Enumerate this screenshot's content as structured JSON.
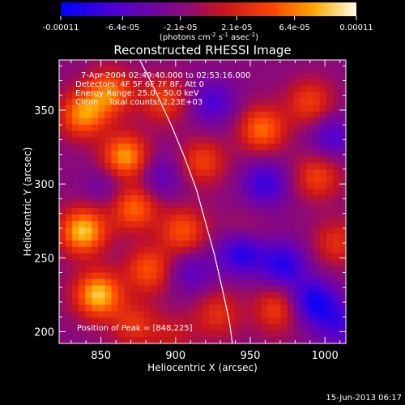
{
  "colorbar": {
    "tick_labels": [
      "-0.00011",
      "-6.4e-05",
      "-2.1e-05",
      "2.1e-05",
      "6.4e-05",
      "0.00011"
    ],
    "tick_values": [
      -0.00011,
      -6.4e-05,
      -2.1e-05,
      2.1e-05,
      6.4e-05,
      0.00011
    ],
    "unit_prefix": "(photons cm",
    "unit_exp1": "-2",
    "unit_mid": " s",
    "unit_exp2": "-1",
    "unit_mid2": " asec",
    "unit_exp3": "-2",
    "unit_suffix": ")"
  },
  "chart_data": {
    "type": "heatmap",
    "title": "Reconstructed RHESSI Image",
    "xlabel": "Heliocentric X (arcsec)",
    "ylabel": "Heliocentric Y (arcsec)",
    "xlim": [
      822,
      1014
    ],
    "ylim": [
      192,
      384
    ],
    "x_ticks": [
      850,
      900,
      950,
      1000
    ],
    "x_tick_labels": [
      "850",
      "900",
      "950",
      "1000"
    ],
    "y_ticks": [
      200,
      250,
      300,
      350
    ],
    "y_tick_labels": [
      "200",
      "250",
      "300",
      "350"
    ],
    "colormap": "rhessi-blue-purple-red-yellow",
    "value_range": [
      -0.00011,
      0.00011
    ],
    "limb_curve": {
      "x": [
        876,
        886,
        897,
        906,
        914,
        920,
        926,
        931,
        936,
        938
      ],
      "y": [
        384,
        364,
        340,
        318,
        296,
        274,
        252,
        230,
        207,
        192
      ]
    },
    "peak": [
      848,
      225
    ],
    "sources": [
      {
        "x": 838,
        "y": 347,
        "v": 9e-05
      },
      {
        "x": 866,
        "y": 318,
        "v": 0.0001
      },
      {
        "x": 838,
        "y": 268,
        "v": 0.00011
      },
      {
        "x": 848,
        "y": 225,
        "v": 0.00011
      },
      {
        "x": 872,
        "y": 284,
        "v": 8e-05
      },
      {
        "x": 892,
        "y": 357,
        "v": 6e-05
      },
      {
        "x": 856,
        "y": 362,
        "v": 8e-05
      },
      {
        "x": 905,
        "y": 268,
        "v": 7e-05
      },
      {
        "x": 882,
        "y": 242,
        "v": 7e-05
      },
      {
        "x": 872,
        "y": 205,
        "v": 5e-05
      },
      {
        "x": 918,
        "y": 315,
        "v": 6e-05
      },
      {
        "x": 958,
        "y": 337,
        "v": 8e-05
      },
      {
        "x": 990,
        "y": 355,
        "v": 6e-05
      },
      {
        "x": 995,
        "y": 305,
        "v": 6e-05
      },
      {
        "x": 1008,
        "y": 260,
        "v": 5e-05
      },
      {
        "x": 968,
        "y": 215,
        "v": 6e-05
      },
      {
        "x": 945,
        "y": 265,
        "v": 4e-05
      },
      {
        "x": 928,
        "y": 212,
        "v": 5e-05
      },
      {
        "x": 898,
        "y": 198,
        "v": 3e-05
      },
      {
        "x": 944,
        "y": 255,
        "v": -9e-05
      },
      {
        "x": 992,
        "y": 220,
        "v": -8e-05
      },
      {
        "x": 972,
        "y": 245,
        "v": -7e-05
      },
      {
        "x": 960,
        "y": 300,
        "v": -6e-05
      },
      {
        "x": 1005,
        "y": 332,
        "v": -5e-05
      },
      {
        "x": 925,
        "y": 355,
        "v": -5e-05
      },
      {
        "x": 890,
        "y": 305,
        "v": -4e-05
      },
      {
        "x": 855,
        "y": 300,
        "v": -3e-05
      },
      {
        "x": 910,
        "y": 240,
        "v": -4e-05
      },
      {
        "x": 1010,
        "y": 205,
        "v": -5e-05
      }
    ]
  },
  "annotations": {
    "time_range": "7-Apr-2004 02:49:40.000 to 02:53:16.000",
    "detectors": "Detectors: 4F 5F 6F 7F 8F, Att 0",
    "energy_range": "Energy Range: 25.0 - 50.0 keV",
    "clean_counts": "Clean    Total counts: 2.23E+03",
    "peak_position": "Position of Peak = [848,225]"
  },
  "footer": {
    "date": "15-Jun-2013 06:17"
  }
}
